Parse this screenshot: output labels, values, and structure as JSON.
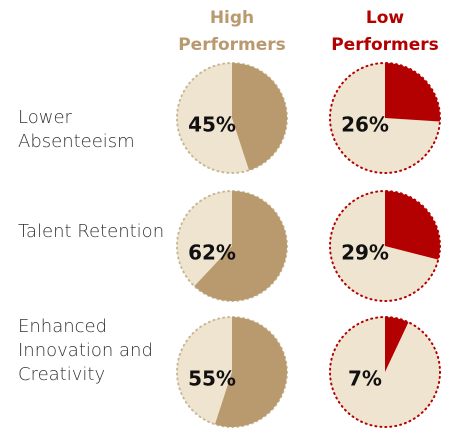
{
  "chart_data": {
    "type": "pie",
    "categories": [
      "Lower Absenteeism",
      "Talent Retention",
      "Enhanced Innovation and Creativity"
    ],
    "series": [
      {
        "name": "High Performers",
        "color": "#b99a6f",
        "values": [
          45,
          62,
          55
        ],
        "value_labels": [
          "45%",
          "62%",
          "55%"
        ]
      },
      {
        "name": "Low Performers",
        "color": "#b30000",
        "values": [
          26,
          29,
          7
        ],
        "value_labels": [
          "26%",
          "29%",
          "7%"
        ]
      }
    ]
  }
}
